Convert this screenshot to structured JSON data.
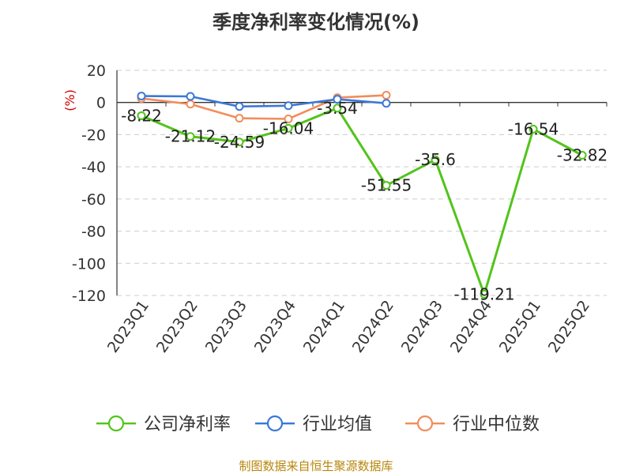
{
  "title": "季度净利率变化情况(%)",
  "source": "制图数据来自恒生聚源数据库",
  "colors": {
    "company": "#52c41a",
    "industry_avg": "#3b78d8",
    "industry_median": "#f28c5b",
    "grid": "#cccccc",
    "axis": "#333333",
    "unit": "#d00000",
    "source": "#b8860b"
  },
  "chart_data": {
    "type": "line",
    "title": "季度净利率变化情况(%)",
    "ylabel": "(%)",
    "xlabel": "",
    "ylim": [
      -120,
      20
    ],
    "yticks": [
      20,
      0,
      -20,
      -40,
      -60,
      -80,
      -100,
      -120
    ],
    "grid": true,
    "legend_position": "bottom",
    "categories": [
      "2023Q1",
      "2023Q2",
      "2023Q3",
      "2023Q4",
      "2024Q1",
      "2024Q2",
      "2024Q3",
      "2024Q4",
      "2025Q1",
      "2025Q2"
    ],
    "series": [
      {
        "name": "公司净利率",
        "color": "#52c41a",
        "values": [
          -8.22,
          -21.12,
          -24.59,
          -16.04,
          -3.54,
          -51.55,
          -35.6,
          -119.21,
          -16.54,
          -32.82
        ],
        "labels": [
          "-8.22",
          "-21.12",
          "-24.59",
          "-16.04",
          "-3.54",
          "-51.55",
          "-35.6",
          "-119.21",
          "-16.54",
          "-32.82"
        ]
      },
      {
        "name": "行业均值",
        "color": "#3b78d8",
        "values": [
          4.0,
          3.8,
          -2.5,
          -2.0,
          2.0,
          -0.5,
          null,
          null,
          null,
          null
        ]
      },
      {
        "name": "行业中位数",
        "color": "#f28c5b",
        "values": [
          2.5,
          -1.0,
          -9.8,
          -10.2,
          3.0,
          4.5,
          null,
          null,
          null,
          null
        ]
      }
    ]
  }
}
